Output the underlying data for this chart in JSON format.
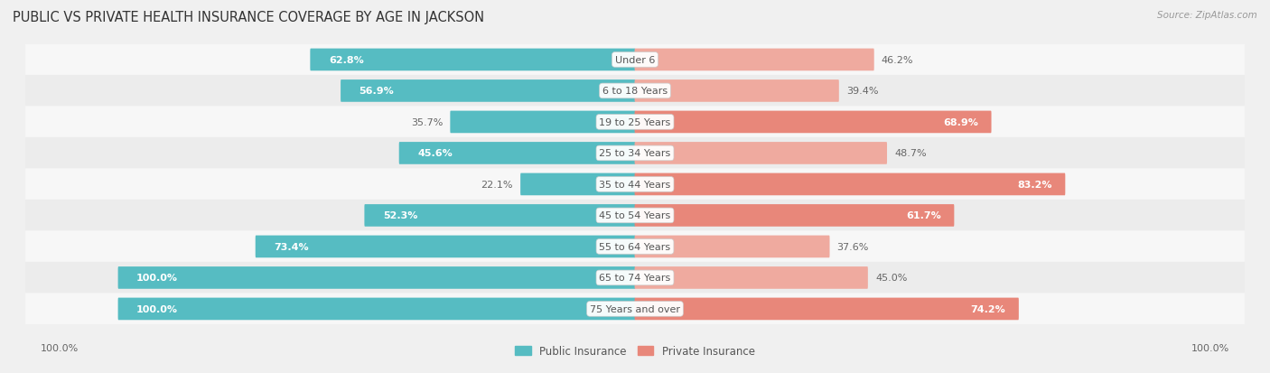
{
  "title": "PUBLIC VS PRIVATE HEALTH INSURANCE COVERAGE BY AGE IN JACKSON",
  "source": "Source: ZipAtlas.com",
  "categories": [
    "Under 6",
    "6 to 18 Years",
    "19 to 25 Years",
    "25 to 34 Years",
    "35 to 44 Years",
    "45 to 54 Years",
    "55 to 64 Years",
    "65 to 74 Years",
    "75 Years and over"
  ],
  "public_values": [
    62.8,
    56.9,
    35.7,
    45.6,
    22.1,
    52.3,
    73.4,
    100.0,
    100.0
  ],
  "private_values": [
    46.2,
    39.4,
    68.9,
    48.7,
    83.2,
    61.7,
    37.6,
    45.0,
    74.2
  ],
  "public_color": "#56bcc2",
  "private_color": "#e8877a",
  "private_color_light": "#efaa9f",
  "bg_color": "#f0f0f0",
  "row_colors": [
    "#f7f7f7",
    "#ececec"
  ],
  "max_value": 100.0,
  "title_fontsize": 10.5,
  "label_fontsize": 8,
  "value_fontsize": 8,
  "legend_fontsize": 8.5
}
